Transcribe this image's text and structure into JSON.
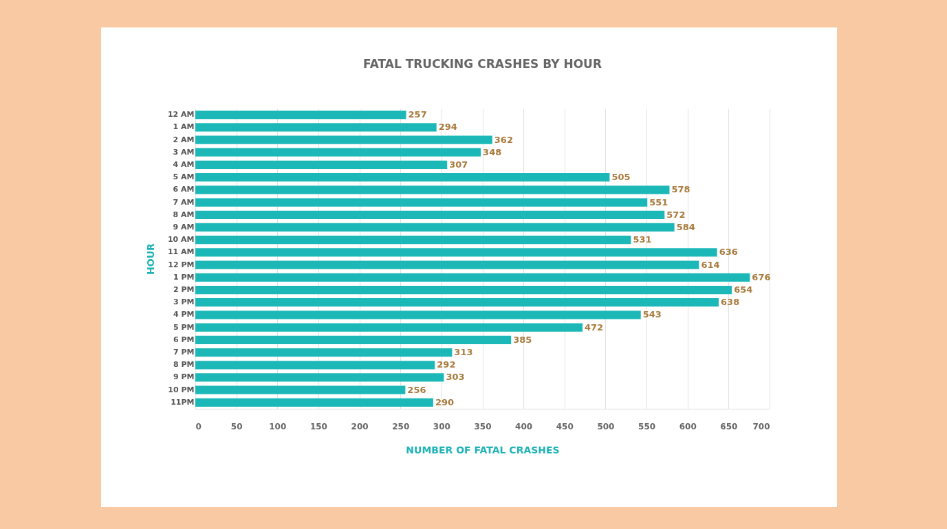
{
  "chart_data": {
    "type": "bar",
    "orientation": "horizontal",
    "title": "FATAL TRUCKING CRASHES BY HOUR",
    "xlabel": "NUMBER OF FATAL CRASHES",
    "ylabel": "HOUR",
    "categories": [
      "12 AM",
      "1 AM",
      "2 AM",
      "3 AM",
      "4 AM",
      "5 AM",
      "6 AM",
      "7 AM",
      "8 AM",
      "9 AM",
      "10 AM",
      "11 AM",
      "12 PM",
      "1 PM",
      "2 PM",
      "3 PM",
      "4 PM",
      "5 PM",
      "6 PM",
      "7 PM",
      "8 PM",
      "9 PM",
      "10  PM",
      "11PM"
    ],
    "values": [
      257,
      294,
      362,
      348,
      307,
      505,
      578,
      551,
      572,
      584,
      531,
      636,
      614,
      676,
      654,
      638,
      543,
      472,
      385,
      313,
      292,
      303,
      256,
      290
    ],
    "color": "#1cb8b8",
    "xlim": [
      0,
      700
    ],
    "xticks": [
      0,
      50,
      100,
      150,
      200,
      250,
      300,
      350,
      400,
      450,
      500,
      550,
      600,
      650,
      700
    ],
    "grid": "x",
    "data_labels": true
  }
}
